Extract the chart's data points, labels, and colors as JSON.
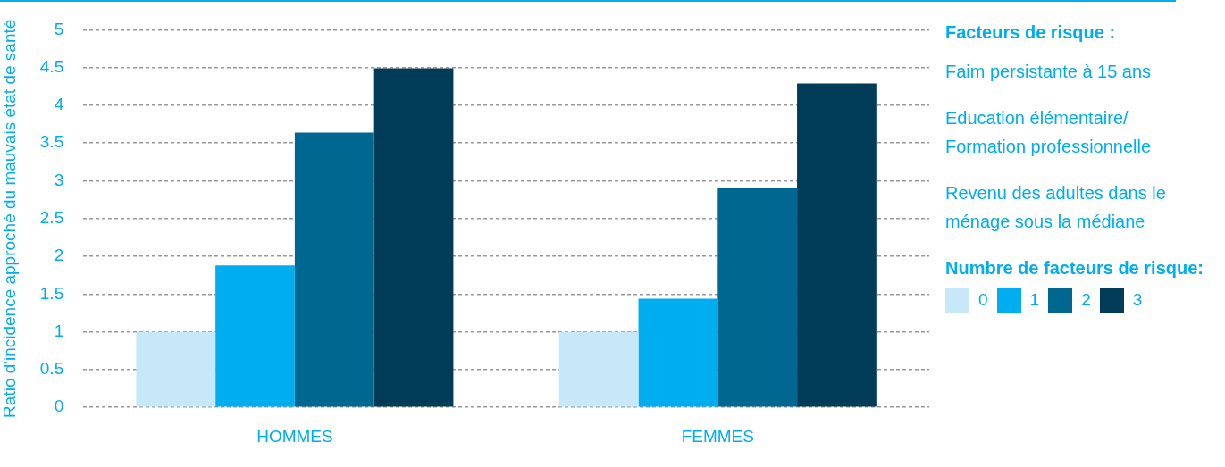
{
  "chart_data": {
    "type": "bar",
    "categories": [
      "HOMMES",
      "FEMMES"
    ],
    "series": [
      {
        "name": "0",
        "color": "#c6e8f8",
        "values": [
          1.0,
          1.0
        ]
      },
      {
        "name": "1",
        "color": "#00adef",
        "values": [
          1.88,
          1.44
        ]
      },
      {
        "name": "2",
        "color": "#006791",
        "values": [
          3.64,
          2.9
        ]
      },
      {
        "name": "3",
        "color": "#003c58",
        "values": [
          4.49,
          4.29
        ]
      }
    ],
    "ylabel": "Ratio d'incidence approché du mauvais état de santé",
    "ylim": [
      0,
      5
    ],
    "yticks": [
      0,
      0.5,
      1,
      1.5,
      2,
      2.5,
      3,
      3.5,
      4,
      4.5,
      5
    ],
    "grid": "y",
    "legend": "right",
    "legend_title": "Numbre de facteurs de risque:",
    "annotations": [
      "Facteurs de risque :",
      "Faim persistante à 15 ans",
      "Education élémentaire/ Formation professionnelle",
      "Revenu des adultes dans le ménage sous la médiane"
    ]
  }
}
